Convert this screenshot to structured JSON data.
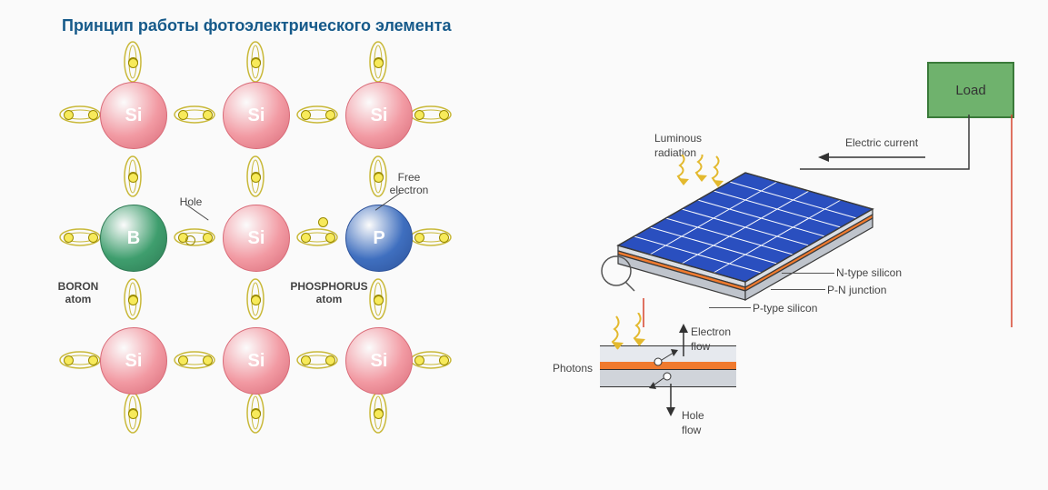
{
  "title": {
    "text": "Принцип работы фотоэлектрического элемента",
    "color": "#165a8a",
    "fontsize": 18
  },
  "lattice": {
    "cell_spacing": 135,
    "atom_radius": 36,
    "atoms": [
      {
        "row": 0,
        "col": 0,
        "label": "Si",
        "fill": "#f29aa3",
        "stroke": "#d96b78",
        "text": "#ffffff"
      },
      {
        "row": 0,
        "col": 1,
        "label": "Si",
        "fill": "#f29aa3",
        "stroke": "#d96b78",
        "text": "#ffffff"
      },
      {
        "row": 0,
        "col": 2,
        "label": "Si",
        "fill": "#f29aa3",
        "stroke": "#d96b78",
        "text": "#ffffff"
      },
      {
        "row": 1,
        "col": 0,
        "label": "B",
        "fill": "#3f9e6e",
        "stroke": "#2d7a53",
        "text": "#ffffff"
      },
      {
        "row": 1,
        "col": 1,
        "label": "Si",
        "fill": "#f29aa3",
        "stroke": "#d96b78",
        "text": "#ffffff"
      },
      {
        "row": 1,
        "col": 2,
        "label": "P",
        "fill": "#3f6fbf",
        "stroke": "#2d529a",
        "text": "#ffffff"
      },
      {
        "row": 2,
        "col": 0,
        "label": "Si",
        "fill": "#f29aa3",
        "stroke": "#d96b78",
        "text": "#ffffff"
      },
      {
        "row": 2,
        "col": 1,
        "label": "Si",
        "fill": "#f29aa3",
        "stroke": "#d96b78",
        "text": "#ffffff"
      },
      {
        "row": 2,
        "col": 2,
        "label": "Si",
        "fill": "#f29aa3",
        "stroke": "#d96b78",
        "text": "#ffffff"
      }
    ],
    "bond": {
      "ellipse_rx": 22,
      "ellipse_ry": 9,
      "stroke": "#c9b93a",
      "fill": "none",
      "electron_fill": "#f7ea5b",
      "electron_stroke": "#9a8a00"
    },
    "hole": {
      "x_between": "B-Si",
      "color": "#f7ea5b"
    },
    "free_electron": {
      "x_between": "Si-P",
      "color": "#f7ea5b"
    },
    "labels": {
      "hole": "Hole",
      "free_electron": "Free\nelectron",
      "boron": "BORON\natom",
      "phosphorus": "PHOSPHORUS\natom"
    }
  },
  "cell_diagram": {
    "panel": {
      "top_fill": "#2a4fbf",
      "grid_stroke": "#ffffff",
      "grid_rows": 4,
      "grid_cols": 8,
      "n_color": "#d9dde3",
      "junction_color": "#f07a2e",
      "p_color": "#bfc4cc",
      "edge_stroke": "#3a3a3a"
    },
    "load": {
      "text": "Load",
      "fill": "#6fb26d",
      "stroke": "#3a7a3a",
      "w": 92,
      "h": 58
    },
    "wires": {
      "top_color": "#3a3a3a",
      "bottom_color": "#d6452e"
    },
    "labels": {
      "luminous": "Luminous\nradiation",
      "electric_current": "Electric current",
      "n_type": "N-type silicon",
      "pn": "P-N junction",
      "p_type": "P-type silicon",
      "photons": "Photons",
      "electron_flow": "Electron\nflow",
      "hole_flow": "Hole\nflow"
    },
    "junction_detail": {
      "layer_top": "#e6e9ee",
      "layer_mid": "#f07a2e",
      "layer_bot": "#d0d4da",
      "stroke": "#333333",
      "electron_fill": "#ffffff",
      "electron_stroke": "#333333"
    }
  },
  "background": "#fafafa"
}
